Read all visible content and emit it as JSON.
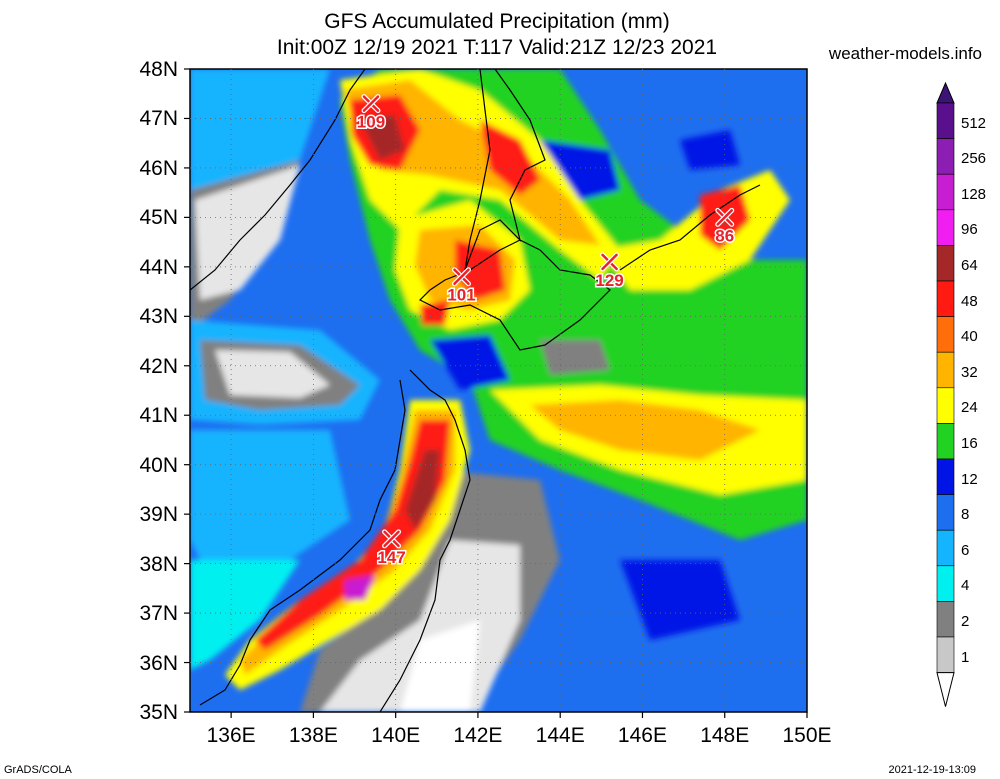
{
  "title": {
    "line1": "GFS Accumulated Precipitation (mm)",
    "line2": "Init:00Z 12/19 2021 T:117 Valid:21Z 12/23 2021"
  },
  "site": "weather-models.info",
  "footer": {
    "left": "GrADS/COLA",
    "right": "2021-12-19-13:09"
  },
  "map": {
    "lat_labels": [
      "48N",
      "47N",
      "46N",
      "45N",
      "44N",
      "43N",
      "42N",
      "41N",
      "40N",
      "39N",
      "38N",
      "37N",
      "36N",
      "35N"
    ],
    "lon_labels": [
      "136E",
      "138E",
      "140E",
      "142E",
      "144E",
      "146E",
      "148E",
      "150E"
    ],
    "extent": {
      "lon_min": 135,
      "lon_max": 150,
      "lat_min": 35,
      "lat_max": 48
    },
    "markers": [
      {
        "label": "109",
        "lon": 139.4,
        "lat": 47.3
      },
      {
        "label": "101",
        "lon": 141.6,
        "lat": 43.8
      },
      {
        "label": "129",
        "lon": 145.2,
        "lat": 44.1
      },
      {
        "label": "86",
        "lon": 148.0,
        "lat": 45.0
      },
      {
        "label": "147",
        "lon": 139.9,
        "lat": 38.5
      }
    ],
    "marker_color": "#e8212a"
  },
  "colorbar": {
    "levels": [
      "512",
      "256",
      "128",
      "96",
      "64",
      "48",
      "40",
      "32",
      "24",
      "16",
      "12",
      "8",
      "6",
      "4",
      "2",
      "1"
    ],
    "colors": [
      "#5a0f8c",
      "#8c1eb4",
      "#c81ed2",
      "#f01ef0",
      "#a52828",
      "#ff1a12",
      "#ff6e0a",
      "#ffb400",
      "#ffff00",
      "#22d222",
      "#0014e6",
      "#1e6ef0",
      "#14b4ff",
      "#00f0f0",
      "#808080",
      "#c8c8c8"
    ],
    "top_color": "#3c1478",
    "bottom_color": "#ffffff"
  }
}
